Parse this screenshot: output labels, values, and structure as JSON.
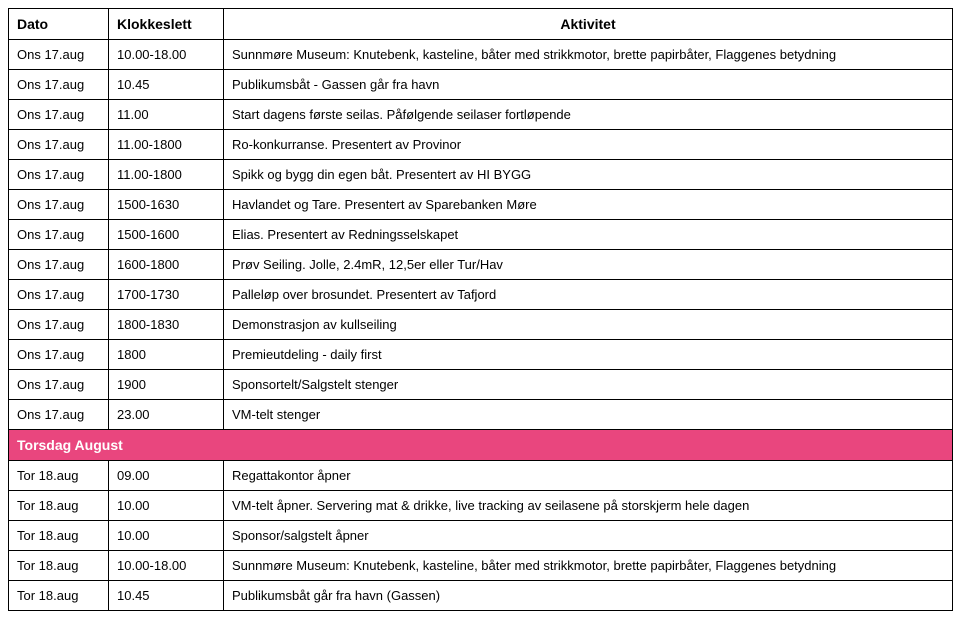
{
  "columns": {
    "date": "Dato",
    "time": "Klokkeslett",
    "activity": "Aktivitet"
  },
  "rows": [
    {
      "type": "data",
      "date": "Ons 17.aug",
      "time": "10.00-18.00",
      "activity_prefix": "Sunnmøre Museum: ",
      "activity_rest": "Knutebenk, kasteline, båter med strikkmotor, brette papirbåter, Flaggenes betydning"
    },
    {
      "type": "data",
      "date": "Ons 17.aug",
      "time": "10.45",
      "activity": "Publikumsbåt - Gassen går fra havn"
    },
    {
      "type": "data",
      "date": "Ons 17.aug",
      "time": "11.00",
      "activity": "Start dagens første seilas. Påfølgende seilaser fortløpende"
    },
    {
      "type": "data",
      "date": "Ons 17.aug",
      "time": "11.00-1800",
      "activity": "Ro-konkurranse. Presentert av Provinor"
    },
    {
      "type": "data",
      "date": "Ons 17.aug",
      "time": "11.00-1800",
      "activity": "Spikk og bygg din egen båt. Presentert av HI BYGG"
    },
    {
      "type": "data",
      "date": "Ons 17.aug",
      "time": "1500-1630",
      "activity": "Havlandet og Tare. Presentert av Sparebanken Møre"
    },
    {
      "type": "data",
      "date": "Ons 17.aug",
      "time": "1500-1600",
      "activity": "Elias. Presentert av Redningsselskapet"
    },
    {
      "type": "data",
      "date": "Ons 17.aug",
      "time": "1600-1800",
      "activity": "Prøv Seiling. Jolle, 2.4mR, 12,5er eller Tur/Hav"
    },
    {
      "type": "data",
      "date": "Ons 17.aug",
      "time": "1700-1730",
      "activity": "Palleløp over brosundet. Presentert av Tafjord"
    },
    {
      "type": "data",
      "date": "Ons 17.aug",
      "time": "1800-1830",
      "activity": "Demonstrasjon av kullseiling"
    },
    {
      "type": "data",
      "date": "Ons 17.aug",
      "time": "1800",
      "activity": "Premieutdeling - daily first"
    },
    {
      "type": "data",
      "date": "Ons 17.aug",
      "time": "1900",
      "activity": "Sponsortelt/Salgstelt stenger"
    },
    {
      "type": "data",
      "date": "Ons 17.aug",
      "time": "23.00",
      "activity": "VM-telt stenger"
    },
    {
      "type": "section",
      "label": "Torsdag August"
    },
    {
      "type": "data",
      "date": "Tor 18.aug",
      "time": "09.00",
      "activity": "Regattakontor åpner"
    },
    {
      "type": "data",
      "date": "Tor 18.aug",
      "time": "10.00",
      "activity": "VM-telt åpner. Servering mat & drikke, live tracking av seilasene på storskjerm hele dagen"
    },
    {
      "type": "data",
      "date": "Tor 18.aug",
      "time": "10.00",
      "activity": "Sponsor/salgstelt åpner"
    },
    {
      "type": "data",
      "date": "Tor 18.aug",
      "time": "10.00-18.00",
      "activity_prefix": "Sunnmøre Museum: ",
      "activity_rest": "Knutebenk, kasteline, båter med strikkmotor, brette papirbåter, Flaggenes betydning"
    },
    {
      "type": "data",
      "date": "Tor 18.aug",
      "time": "10.45",
      "activity": "Publikumsbåt går fra havn (Gassen)"
    }
  ],
  "style": {
    "section_bg": "#e9467e",
    "section_fg": "#ffffff",
    "border_color": "#000000",
    "font_size_body": 13,
    "font_size_header": 14
  }
}
